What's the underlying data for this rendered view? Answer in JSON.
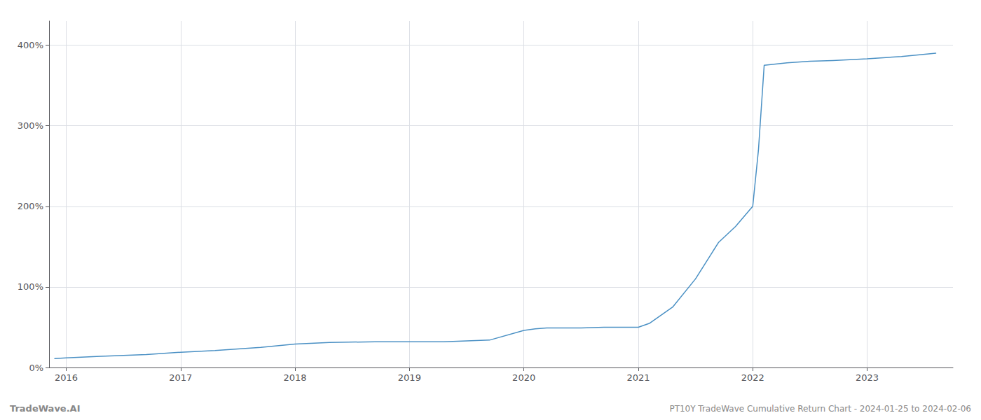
{
  "chart_data": {
    "type": "line",
    "x": [
      2015.9,
      2016.0,
      2016.3,
      2016.7,
      2017.0,
      2017.3,
      2017.7,
      2018.0,
      2018.3,
      2018.7,
      2019.0,
      2019.1,
      2019.3,
      2019.5,
      2019.7,
      2020.0,
      2020.1,
      2020.2,
      2020.5,
      2020.7,
      2021.0,
      2021.1,
      2021.3,
      2021.5,
      2021.7,
      2021.85,
      2022.0,
      2022.05,
      2022.1,
      2022.3,
      2022.5,
      2022.7,
      2023.0,
      2023.3,
      2023.6
    ],
    "values": [
      11,
      12,
      14,
      16,
      19,
      21,
      25,
      29,
      31,
      32,
      32,
      32,
      32,
      33,
      34,
      46,
      48,
      49,
      49,
      50,
      50,
      55,
      75,
      110,
      155,
      175,
      200,
      270,
      375,
      378,
      380,
      381,
      383,
      386,
      390
    ],
    "color": "#4a90c4",
    "xlim": [
      2015.85,
      2023.75
    ],
    "ylim": [
      0,
      430
    ],
    "xticks": [
      2016,
      2017,
      2018,
      2019,
      2020,
      2021,
      2022,
      2023
    ],
    "yticks": [
      {
        "value": 0,
        "label": "0%"
      },
      {
        "value": 100,
        "label": "100%"
      },
      {
        "value": 200,
        "label": "200%"
      },
      {
        "value": 300,
        "label": "300%"
      },
      {
        "value": 400,
        "label": "400%"
      }
    ],
    "grid": true,
    "annotations": [
      "TradeWave.AI",
      "PT10Y TradeWave Cumulative Return Chart - 2024-01-25 to 2024-02-06"
    ]
  }
}
